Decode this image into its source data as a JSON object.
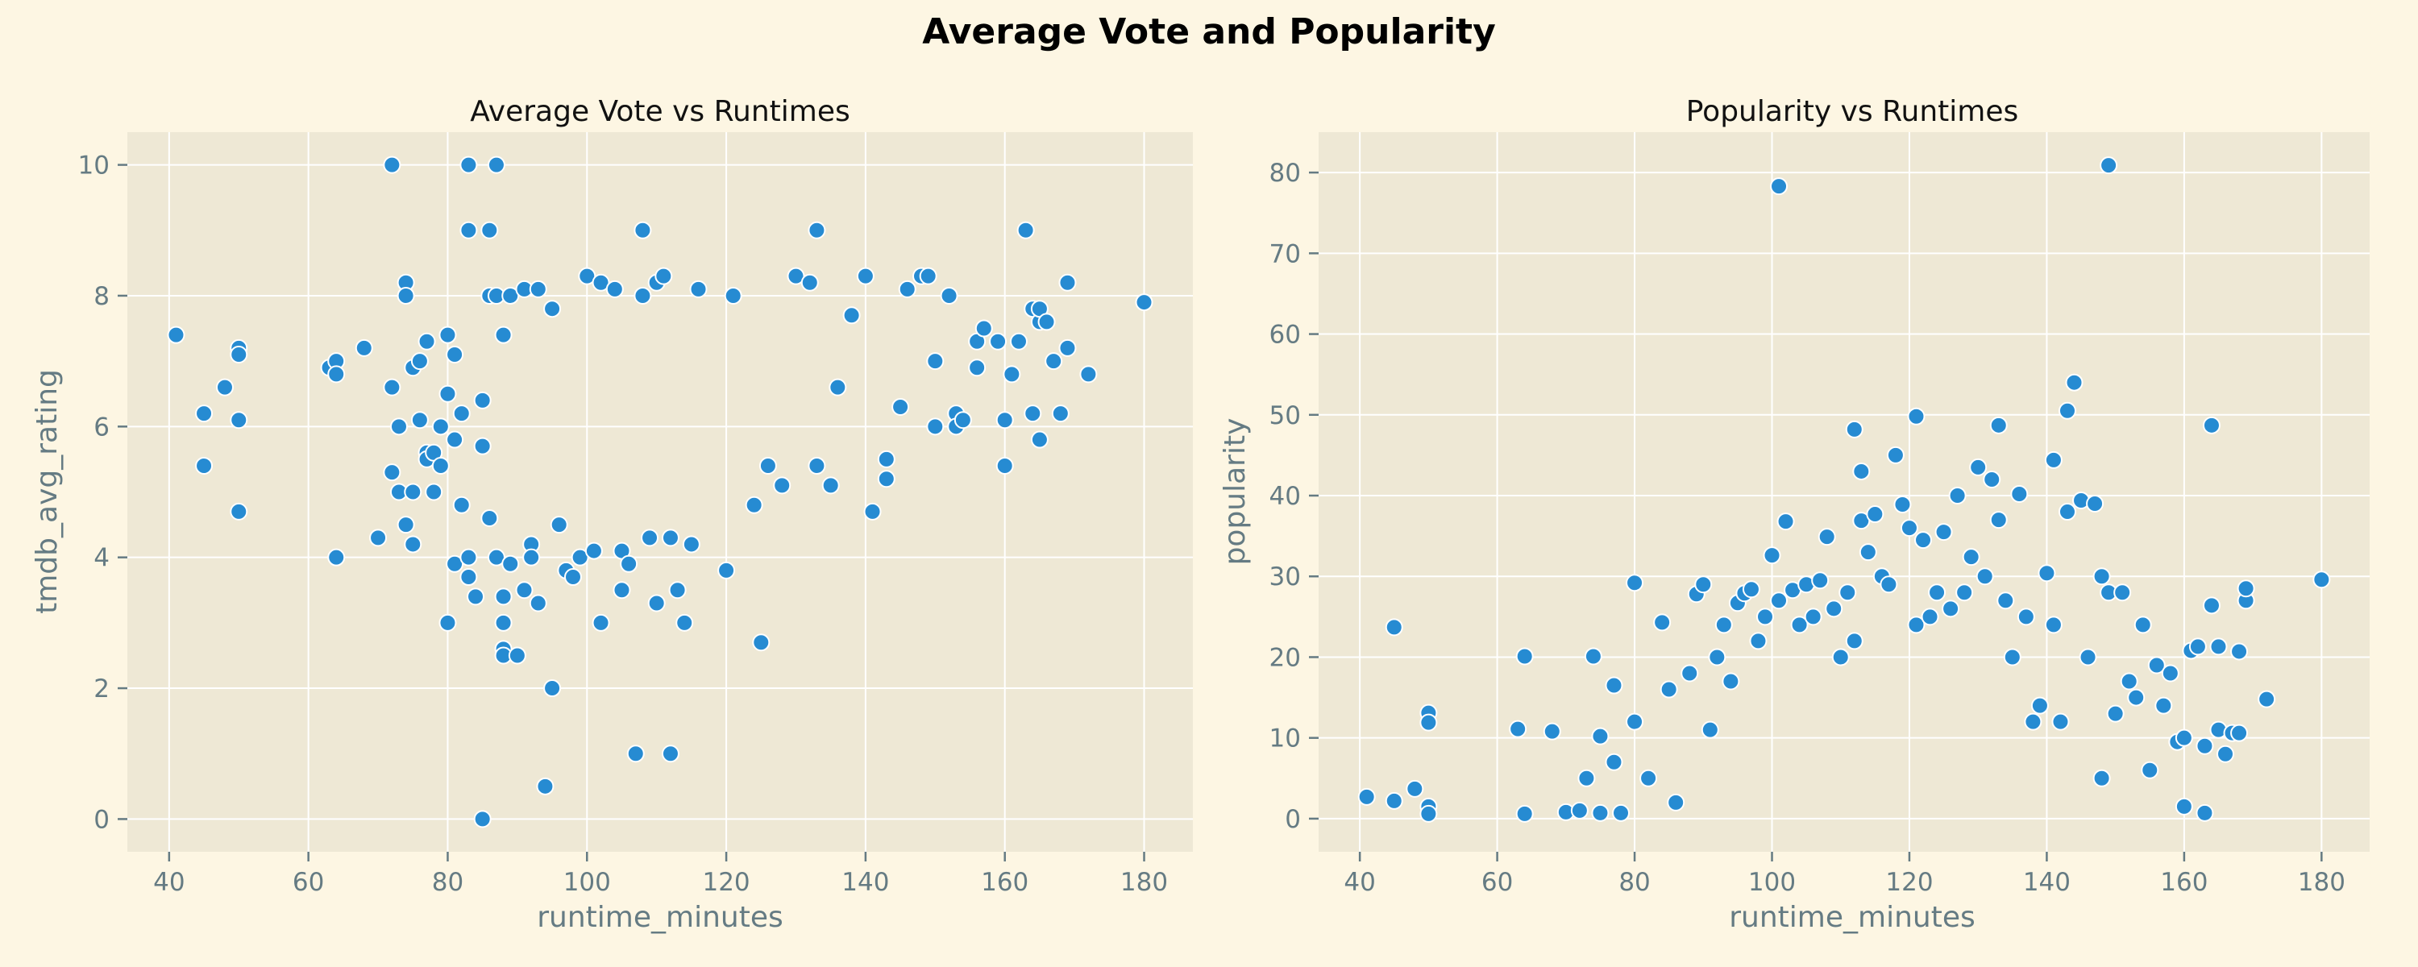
{
  "figure": {
    "title": "Average Vote and Popularity"
  },
  "colors": {
    "figure_bg": "#fdf6e3",
    "axes_bg": "#eee8d5",
    "grid": "#ffffff",
    "marker": "#268bd2",
    "text": "#657b83"
  },
  "chart_data": [
    {
      "type": "scatter",
      "title": "Average Vote vs Runtimes",
      "xlabel": "runtime_minutes",
      "ylabel": "tmdb_avg_rating",
      "xlim": [
        34,
        187
      ],
      "ylim": [
        -0.5,
        10.5
      ],
      "xticks": [
        40,
        60,
        80,
        100,
        120,
        140,
        160,
        180
      ],
      "yticks": [
        0,
        2,
        4,
        6,
        8,
        10
      ],
      "grid": true,
      "points": [
        [
          41,
          7.4
        ],
        [
          45,
          6.2
        ],
        [
          45,
          5.4
        ],
        [
          48,
          6.6
        ],
        [
          50,
          7.2
        ],
        [
          50,
          7.1
        ],
        [
          50,
          6.1
        ],
        [
          50,
          4.7
        ],
        [
          63,
          6.9
        ],
        [
          64,
          7.0
        ],
        [
          64,
          6.8
        ],
        [
          64,
          4.0
        ],
        [
          68,
          7.2
        ],
        [
          70,
          4.3
        ],
        [
          72,
          10.0
        ],
        [
          72,
          6.6
        ],
        [
          72,
          5.3
        ],
        [
          73,
          6.0
        ],
        [
          73,
          5.0
        ],
        [
          74,
          8.2
        ],
        [
          74,
          8.0
        ],
        [
          74,
          4.5
        ],
        [
          75,
          6.9
        ],
        [
          75,
          5.0
        ],
        [
          75,
          4.2
        ],
        [
          76,
          6.1
        ],
        [
          76,
          7.0
        ],
        [
          77,
          7.3
        ],
        [
          77,
          5.6
        ],
        [
          77,
          5.5
        ],
        [
          78,
          5.6
        ],
        [
          78,
          5.0
        ],
        [
          79,
          6.0
        ],
        [
          79,
          5.4
        ],
        [
          80,
          7.4
        ],
        [
          80,
          6.5
        ],
        [
          80,
          3.0
        ],
        [
          81,
          7.1
        ],
        [
          81,
          5.8
        ],
        [
          81,
          3.9
        ],
        [
          82,
          4.8
        ],
        [
          82,
          6.2
        ],
        [
          83,
          10.0
        ],
        [
          83,
          9.0
        ],
        [
          83,
          4.0
        ],
        [
          83,
          3.7
        ],
        [
          84,
          3.4
        ],
        [
          85,
          6.4
        ],
        [
          85,
          5.7
        ],
        [
          85,
          0.0
        ],
        [
          86,
          9.0
        ],
        [
          86,
          8.0
        ],
        [
          86,
          4.6
        ],
        [
          87,
          10.0
        ],
        [
          87,
          8.0
        ],
        [
          87,
          4.0
        ],
        [
          88,
          7.4
        ],
        [
          88,
          3.4
        ],
        [
          88,
          3.0
        ],
        [
          88,
          2.6
        ],
        [
          88,
          2.5
        ],
        [
          89,
          3.9
        ],
        [
          89,
          8.0
        ],
        [
          90,
          2.5
        ],
        [
          91,
          8.1
        ],
        [
          91,
          3.5
        ],
        [
          92,
          4.2
        ],
        [
          92,
          4.0
        ],
        [
          93,
          8.1
        ],
        [
          93,
          3.3
        ],
        [
          94,
          0.5
        ],
        [
          95,
          2.0
        ],
        [
          95,
          7.8
        ],
        [
          96,
          4.5
        ],
        [
          97,
          3.8
        ],
        [
          98,
          3.7
        ],
        [
          99,
          4.0
        ],
        [
          100,
          8.3
        ],
        [
          101,
          4.1
        ],
        [
          102,
          8.2
        ],
        [
          102,
          3.0
        ],
        [
          104,
          8.1
        ],
        [
          105,
          3.5
        ],
        [
          105,
          4.1
        ],
        [
          106,
          3.9
        ],
        [
          107,
          1.0
        ],
        [
          108,
          9.0
        ],
        [
          108,
          8.0
        ],
        [
          109,
          4.3
        ],
        [
          110,
          3.3
        ],
        [
          110,
          8.2
        ],
        [
          111,
          8.3
        ],
        [
          112,
          1.0
        ],
        [
          112,
          4.3
        ],
        [
          113,
          3.5
        ],
        [
          114,
          3.0
        ],
        [
          115,
          4.2
        ],
        [
          116,
          8.1
        ],
        [
          120,
          3.8
        ],
        [
          121,
          8.0
        ],
        [
          124,
          4.8
        ],
        [
          125,
          2.7
        ],
        [
          126,
          5.4
        ],
        [
          128,
          5.1
        ],
        [
          130,
          8.3
        ],
        [
          132,
          8.2
        ],
        [
          133,
          9.0
        ],
        [
          133,
          5.4
        ],
        [
          135,
          5.1
        ],
        [
          136,
          6.6
        ],
        [
          138,
          7.7
        ],
        [
          140,
          8.3
        ],
        [
          141,
          4.7
        ],
        [
          143,
          5.5
        ],
        [
          143,
          5.2
        ],
        [
          145,
          6.3
        ],
        [
          146,
          8.1
        ],
        [
          148,
          8.3
        ],
        [
          149,
          8.3
        ],
        [
          150,
          7.0
        ],
        [
          150,
          6.0
        ],
        [
          152,
          8.0
        ],
        [
          153,
          6.2
        ],
        [
          153,
          6.0
        ],
        [
          154,
          6.1
        ],
        [
          156,
          7.3
        ],
        [
          156,
          6.9
        ],
        [
          157,
          7.5
        ],
        [
          159,
          7.3
        ],
        [
          160,
          6.1
        ],
        [
          160,
          5.4
        ],
        [
          161,
          6.8
        ],
        [
          162,
          7.3
        ],
        [
          163,
          9.0
        ],
        [
          164,
          6.2
        ],
        [
          164,
          7.8
        ],
        [
          165,
          7.6
        ],
        [
          165,
          7.8
        ],
        [
          165,
          5.8
        ],
        [
          166,
          7.6
        ],
        [
          167,
          7.0
        ],
        [
          168,
          6.2
        ],
        [
          169,
          7.2
        ],
        [
          169,
          8.2
        ],
        [
          172,
          6.8
        ],
        [
          180,
          7.9
        ]
      ]
    },
    {
      "type": "scatter",
      "title": "Popularity vs Runtimes",
      "xlabel": "runtime_minutes",
      "ylabel": "popularity",
      "xlim": [
        34,
        187
      ],
      "ylim": [
        -4.1,
        85
      ],
      "xticks": [
        40,
        60,
        80,
        100,
        120,
        140,
        160,
        180
      ],
      "yticks": [
        0,
        10,
        20,
        30,
        40,
        50,
        60,
        70,
        80
      ],
      "grid": true,
      "points": [
        [
          41,
          2.7
        ],
        [
          45,
          23.7
        ],
        [
          45,
          2.2
        ],
        [
          48,
          3.7
        ],
        [
          50,
          13.1
        ],
        [
          50,
          11.9
        ],
        [
          50,
          1.5
        ],
        [
          50,
          0.6
        ],
        [
          63,
          11.1
        ],
        [
          64,
          20.1
        ],
        [
          64,
          0.6
        ],
        [
          68,
          10.8
        ],
        [
          70,
          0.8
        ],
        [
          72,
          1.0
        ],
        [
          73,
          5.0
        ],
        [
          74,
          20.1
        ],
        [
          75,
          10.2
        ],
        [
          75,
          0.7
        ],
        [
          77,
          16.5
        ],
        [
          77,
          7.0
        ],
        [
          78,
          0.7
        ],
        [
          80,
          29.2
        ],
        [
          80,
          12.0
        ],
        [
          82,
          5.0
        ],
        [
          84,
          24.3
        ],
        [
          85,
          16.0
        ],
        [
          86,
          2.0
        ],
        [
          88,
          18.0
        ],
        [
          89,
          27.8
        ],
        [
          90,
          29.0
        ],
        [
          91,
          11.0
        ],
        [
          92,
          20.0
        ],
        [
          93,
          24.0
        ],
        [
          94,
          17.0
        ],
        [
          95,
          26.7
        ],
        [
          96,
          27.9
        ],
        [
          97,
          28.4
        ],
        [
          98,
          22.0
        ],
        [
          99,
          25.0
        ],
        [
          100,
          32.6
        ],
        [
          101,
          78.3
        ],
        [
          101,
          27.0
        ],
        [
          102,
          36.8
        ],
        [
          103,
          28.3
        ],
        [
          104,
          24.0
        ],
        [
          105,
          29.0
        ],
        [
          106,
          25.0
        ],
        [
          107,
          29.5
        ],
        [
          108,
          34.9
        ],
        [
          109,
          26.0
        ],
        [
          110,
          20.0
        ],
        [
          111,
          28.0
        ],
        [
          112,
          48.2
        ],
        [
          112,
          22.0
        ],
        [
          113,
          36.9
        ],
        [
          113,
          43.0
        ],
        [
          114,
          33.0
        ],
        [
          115,
          37.7
        ],
        [
          116,
          30.0
        ],
        [
          117,
          29.0
        ],
        [
          118,
          45.0
        ],
        [
          119,
          38.9
        ],
        [
          120,
          36.0
        ],
        [
          121,
          49.8
        ],
        [
          121,
          24.0
        ],
        [
          122,
          34.5
        ],
        [
          123,
          25.0
        ],
        [
          124,
          28.0
        ],
        [
          125,
          35.5
        ],
        [
          126,
          26.0
        ],
        [
          127,
          40.0
        ],
        [
          128,
          28.0
        ],
        [
          129,
          32.4
        ],
        [
          130,
          43.5
        ],
        [
          131,
          30.0
        ],
        [
          132,
          42.0
        ],
        [
          133,
          37.0
        ],
        [
          133,
          48.7
        ],
        [
          134,
          27.0
        ],
        [
          135,
          20.0
        ],
        [
          136,
          40.2
        ],
        [
          137,
          25.0
        ],
        [
          138,
          12.0
        ],
        [
          139,
          14.0
        ],
        [
          140,
          30.4
        ],
        [
          141,
          44.4
        ],
        [
          141,
          24.0
        ],
        [
          142,
          12.0
        ],
        [
          143,
          38.0
        ],
        [
          143,
          50.5
        ],
        [
          144,
          54.0
        ],
        [
          145,
          39.4
        ],
        [
          146,
          20.0
        ],
        [
          147,
          39.0
        ],
        [
          148,
          30.0
        ],
        [
          148,
          5.0
        ],
        [
          149,
          80.9
        ],
        [
          149,
          28.0
        ],
        [
          150,
          13.0
        ],
        [
          151,
          28.0
        ],
        [
          152,
          17.0
        ],
        [
          153,
          15.0
        ],
        [
          154,
          24.0
        ],
        [
          155,
          6.0
        ],
        [
          156,
          19.0
        ],
        [
          157,
          14.0
        ],
        [
          158,
          18.0
        ],
        [
          159,
          9.5
        ],
        [
          160,
          10.0
        ],
        [
          160,
          1.5
        ],
        [
          161,
          20.8
        ],
        [
          162,
          21.3
        ],
        [
          163,
          9.0
        ],
        [
          163,
          0.7
        ],
        [
          164,
          26.4
        ],
        [
          164,
          48.7
        ],
        [
          165,
          11.0
        ],
        [
          165,
          21.3
        ],
        [
          166,
          8.0
        ],
        [
          167,
          10.6
        ],
        [
          168,
          20.7
        ],
        [
          168,
          10.6
        ],
        [
          169,
          27.0
        ],
        [
          169,
          28.5
        ],
        [
          172,
          14.8
        ],
        [
          180,
          29.6
        ]
      ]
    }
  ]
}
